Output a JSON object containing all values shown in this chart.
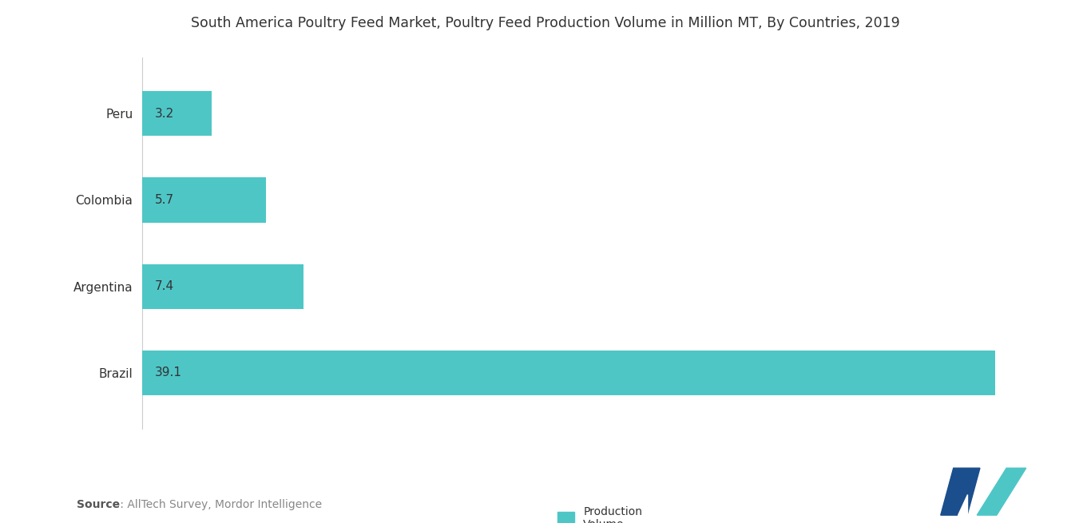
{
  "title": "South America Poultry Feed Market, Poultry Feed Production Volume in Million MT, By Countries, 2019",
  "countries": [
    "Brazil",
    "Argentina",
    "Colombia",
    "Peru"
  ],
  "values": [
    39.1,
    7.4,
    5.7,
    3.2
  ],
  "bar_color": "#4EC6C6",
  "label_color": "#555555",
  "text_color": "#333333",
  "bg_color": "#FFFFFF",
  "legend_label": "Production\nVolume",
  "source_text": "Source : AllTech Survey, Mordor Intelligence",
  "source_bold": "Source",
  "title_fontsize": 12.5,
  "label_fontsize": 11,
  "value_fontsize": 11,
  "xlim": [
    0,
    42
  ],
  "bar_height": 0.52
}
